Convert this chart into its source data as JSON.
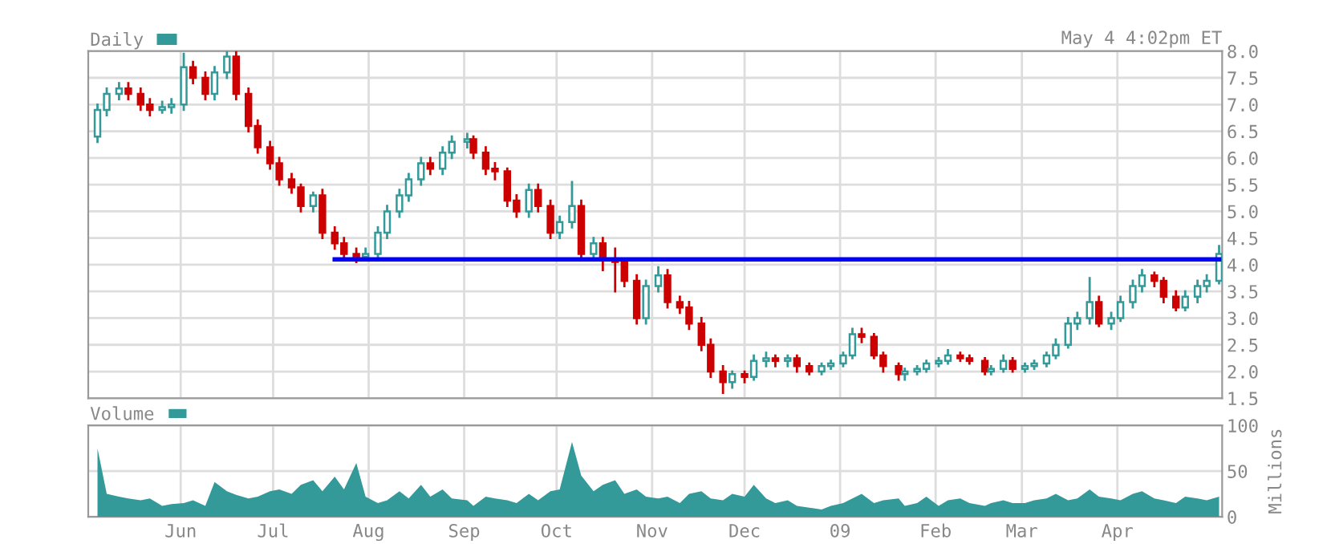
{
  "chart_data": [
    {
      "type": "candlestick",
      "legend": "top left",
      "grid": true,
      "tick_labels": "y",
      "annotations": [
        "May 4 4:02pm ET"
      ],
      "xlim": [
        "2008-05-02",
        "2009-05-05"
      ],
      "xticks": [
        "2008-06-01",
        "2008-07-01",
        "2008-08-01",
        "2008-09-01",
        "2008-10-01",
        "2008-11-01",
        "2008-12-01",
        "2009-01-01",
        "2009-02-01",
        "2009-03-01",
        "2009-04-01"
      ],
      "ylim": [
        1.5,
        8.0
      ],
      "yticks": [
        1.5,
        {
          "value": 2,
          "label": "2.0"
        },
        2.5,
        {
          "value": 3,
          "label": "3.0"
        },
        3.5,
        {
          "value": 4,
          "label": "4.0"
        },
        4.5,
        {
          "value": 5,
          "label": "5.0"
        },
        5.5,
        {
          "value": 6,
          "label": "6.0"
        },
        6.5,
        {
          "value": 7,
          "label": "7.0"
        },
        7.5,
        {
          "value": 8,
          "label": "8.0"
        }
      ],
      "series": [
        {
          "type": "candlestick",
          "name": "Daily",
          "color": "#339999",
          "colors": [
            "#339999",
            "#339999",
            "#339999",
            "#cc0000",
            "#cc0000",
            "#cc0000",
            "#339999",
            "#339999",
            "#339999",
            "#cc0000",
            "#cc0000",
            "#339999",
            "#339999",
            "#cc0000",
            "#cc0000",
            "#cc0000",
            "#cc0000",
            "#cc0000",
            "#cc0000",
            "#cc0000",
            "#339999",
            "#cc0000",
            "#cc0000",
            "#cc0000",
            "#cc0000",
            "#339999",
            "#339999",
            "#339999",
            "#339999",
            "#339999",
            "#339999",
            "#cc0000",
            "#339999",
            "#339999",
            "#339999",
            "#cc0000",
            "#cc0000",
            "#cc0000",
            "#cc0000",
            "#cc0000",
            "#339999",
            "#cc0000",
            "#cc0000",
            "#339999",
            "#339999",
            "#cc0000",
            "#339999",
            "#cc0000",
            "#cc0000",
            "#cc0000",
            "#cc0000",
            "#339999",
            "#339999",
            "#cc0000",
            "#cc0000",
            "#cc0000",
            "#cc0000",
            "#cc0000",
            "#cc0000",
            "#339999",
            "#cc0000",
            "#339999",
            "#339999",
            "#cc0000",
            "#339999",
            "#cc0000",
            "#cc0000",
            "#339999",
            "#339999",
            "#339999",
            "#339999",
            "#cc0000",
            "#cc0000",
            "#cc0000",
            "#cc0000",
            "#339999",
            "#339999",
            "#339999",
            "#339999",
            "#339999",
            "#cc0000",
            "#cc0000",
            "#cc0000",
            "#339999",
            "#339999",
            "#cc0000",
            "#339999",
            "#339999",
            "#339999",
            "#339999",
            "#339999",
            "#339999",
            "#339999",
            "#cc0000",
            "#339999",
            "#339999",
            "#339999",
            "#339999",
            "#cc0000",
            "#cc0000",
            "#cc0000",
            "#339999",
            "#339999",
            "#339999",
            "#339999"
          ],
          "x": [
            "2008-05-05",
            "2008-05-08",
            "2008-05-12",
            "2008-05-15",
            "2008-05-19",
            "2008-05-22",
            "2008-05-26",
            "2008-05-29",
            "2008-06-02",
            "2008-06-05",
            "2008-06-09",
            "2008-06-12",
            "2008-06-16",
            "2008-06-19",
            "2008-06-23",
            "2008-06-26",
            "2008-06-30",
            "2008-07-03",
            "2008-07-07",
            "2008-07-10",
            "2008-07-14",
            "2008-07-17",
            "2008-07-21",
            "2008-07-24",
            "2008-07-28",
            "2008-07-31",
            "2008-08-04",
            "2008-08-07",
            "2008-08-11",
            "2008-08-14",
            "2008-08-18",
            "2008-08-21",
            "2008-08-25",
            "2008-08-28",
            "2008-09-02",
            "2008-09-04",
            "2008-09-08",
            "2008-09-11",
            "2008-09-15",
            "2008-09-18",
            "2008-09-22",
            "2008-09-25",
            "2008-09-29",
            "2008-10-02",
            "2008-10-06",
            "2008-10-09",
            "2008-10-13",
            "2008-10-16",
            "2008-10-20",
            "2008-10-23",
            "2008-10-27",
            "2008-10-30",
            "2008-11-03",
            "2008-11-06",
            "2008-11-10",
            "2008-11-13",
            "2008-11-17",
            "2008-11-20",
            "2008-11-24",
            "2008-11-27",
            "2008-12-01",
            "2008-12-04",
            "2008-12-08",
            "2008-12-11",
            "2008-12-15",
            "2008-12-18",
            "2008-12-22",
            "2008-12-26",
            "2008-12-29",
            "2009-01-02",
            "2009-01-05",
            "2009-01-08",
            "2009-01-12",
            "2009-01-15",
            "2009-01-20",
            "2009-01-22",
            "2009-01-26",
            "2009-01-29",
            "2009-02-02",
            "2009-02-05",
            "2009-02-09",
            "2009-02-12",
            "2009-02-17",
            "2009-02-19",
            "2009-02-23",
            "2009-02-26",
            "2009-03-02",
            "2009-03-05",
            "2009-03-09",
            "2009-03-12",
            "2009-03-16",
            "2009-03-19",
            "2009-03-23",
            "2009-03-26",
            "2009-03-30",
            "2009-04-02",
            "2009-04-06",
            "2009-04-09",
            "2009-04-13",
            "2009-04-16",
            "2009-04-20",
            "2009-04-23",
            "2009-04-27",
            "2009-04-30",
            "2009-05-04"
          ],
          "ohlc": [
            [
              6.4,
              7.0,
              6.3,
              6.9
            ],
            [
              6.9,
              7.3,
              6.8,
              7.2
            ],
            [
              7.2,
              7.4,
              7.1,
              7.3
            ],
            [
              7.3,
              7.4,
              7.1,
              7.2
            ],
            [
              7.2,
              7.3,
              6.9,
              7.0
            ],
            [
              7.0,
              7.1,
              6.8,
              6.9
            ],
            [
              6.9,
              7.05,
              6.85,
              6.95
            ],
            [
              6.95,
              7.1,
              6.85,
              7.0
            ],
            [
              7.0,
              7.95,
              6.9,
              7.7
            ],
            [
              7.7,
              7.8,
              7.4,
              7.5
            ],
            [
              7.5,
              7.6,
              7.1,
              7.2
            ],
            [
              7.2,
              7.7,
              7.1,
              7.6
            ],
            [
              7.6,
              8.0,
              7.5,
              7.9
            ],
            [
              7.9,
              8.0,
              7.1,
              7.2
            ],
            [
              7.2,
              7.3,
              6.5,
              6.6
            ],
            [
              6.6,
              6.7,
              6.1,
              6.2
            ],
            [
              6.2,
              6.3,
              5.8,
              5.9
            ],
            [
              5.9,
              6.0,
              5.5,
              5.6
            ],
            [
              5.6,
              5.7,
              5.35,
              5.45
            ],
            [
              5.45,
              5.5,
              5.0,
              5.1
            ],
            [
              5.1,
              5.35,
              5.0,
              5.3
            ],
            [
              5.3,
              5.4,
              4.5,
              4.6
            ],
            [
              4.6,
              4.7,
              4.3,
              4.4
            ],
            [
              4.4,
              4.5,
              4.1,
              4.2
            ],
            [
              4.2,
              4.3,
              4.05,
              4.15
            ],
            [
              4.15,
              4.3,
              4.1,
              4.2
            ],
            [
              4.2,
              4.7,
              4.1,
              4.6
            ],
            [
              4.6,
              5.1,
              4.5,
              5.0
            ],
            [
              5.0,
              5.4,
              4.9,
              5.3
            ],
            [
              5.3,
              5.7,
              5.2,
              5.6
            ],
            [
              5.6,
              6.0,
              5.5,
              5.9
            ],
            [
              5.9,
              6.0,
              5.7,
              5.8
            ],
            [
              5.8,
              6.2,
              5.7,
              6.1
            ],
            [
              6.1,
              6.4,
              6.0,
              6.3
            ],
            [
              6.3,
              6.45,
              6.2,
              6.35
            ],
            [
              6.35,
              6.4,
              6.0,
              6.1
            ],
            [
              6.1,
              6.2,
              5.7,
              5.8
            ],
            [
              5.8,
              5.9,
              5.6,
              5.75
            ],
            [
              5.75,
              5.8,
              5.1,
              5.2
            ],
            [
              5.2,
              5.3,
              4.9,
              5.0
            ],
            [
              5.0,
              5.5,
              4.9,
              5.4
            ],
            [
              5.4,
              5.5,
              5.0,
              5.1
            ],
            [
              5.1,
              5.2,
              4.5,
              4.6
            ],
            [
              4.6,
              4.9,
              4.5,
              4.8
            ],
            [
              4.8,
              5.55,
              4.7,
              5.1
            ],
            [
              5.1,
              5.2,
              4.1,
              4.2
            ],
            [
              4.2,
              4.5,
              4.1,
              4.4
            ],
            [
              4.4,
              4.5,
              3.9,
              4.1
            ],
            [
              4.1,
              4.3,
              3.5,
              4.05
            ],
            [
              4.05,
              4.1,
              3.6,
              3.7
            ],
            [
              3.7,
              3.8,
              2.9,
              3.0
            ],
            [
              3.0,
              3.7,
              2.9,
              3.6
            ],
            [
              3.6,
              3.95,
              3.5,
              3.8
            ],
            [
              3.8,
              3.9,
              3.2,
              3.3
            ],
            [
              3.3,
              3.4,
              3.1,
              3.2
            ],
            [
              3.2,
              3.3,
              2.8,
              2.9
            ],
            [
              2.9,
              3.0,
              2.4,
              2.5
            ],
            [
              2.5,
              2.6,
              1.9,
              2.0
            ],
            [
              2.0,
              2.1,
              1.6,
              1.8
            ],
            [
              1.8,
              2.0,
              1.7,
              1.95
            ],
            [
              1.95,
              2.0,
              1.8,
              1.9
            ],
            [
              1.9,
              2.3,
              1.85,
              2.2
            ],
            [
              2.2,
              2.35,
              2.1,
              2.25
            ],
            [
              2.25,
              2.3,
              2.1,
              2.2
            ],
            [
              2.2,
              2.3,
              2.1,
              2.25
            ],
            [
              2.25,
              2.3,
              2.0,
              2.1
            ],
            [
              2.1,
              2.15,
              1.95,
              2.0
            ],
            [
              2.0,
              2.15,
              1.95,
              2.1
            ],
            [
              2.1,
              2.2,
              2.05,
              2.15
            ],
            [
              2.15,
              2.35,
              2.1,
              2.3
            ],
            [
              2.3,
              2.8,
              2.25,
              2.7
            ],
            [
              2.7,
              2.8,
              2.55,
              2.65
            ],
            [
              2.65,
              2.7,
              2.25,
              2.3
            ],
            [
              2.3,
              2.35,
              2.0,
              2.1
            ],
            [
              2.1,
              2.15,
              1.85,
              1.95
            ],
            [
              1.95,
              2.05,
              1.85,
              2.0
            ],
            [
              2.0,
              2.1,
              1.95,
              2.05
            ],
            [
              2.05,
              2.2,
              2.0,
              2.15
            ],
            [
              2.15,
              2.25,
              2.1,
              2.2
            ],
            [
              2.2,
              2.4,
              2.15,
              2.3
            ],
            [
              2.3,
              2.35,
              2.2,
              2.25
            ],
            [
              2.25,
              2.3,
              2.15,
              2.2
            ],
            [
              2.2,
              2.25,
              1.95,
              2.0
            ],
            [
              2.0,
              2.1,
              1.95,
              2.05
            ],
            [
              2.05,
              2.3,
              2.0,
              2.2
            ],
            [
              2.2,
              2.25,
              2.0,
              2.05
            ],
            [
              2.05,
              2.15,
              2.0,
              2.1
            ],
            [
              2.1,
              2.2,
              2.05,
              2.15
            ],
            [
              2.15,
              2.35,
              2.1,
              2.3
            ],
            [
              2.3,
              2.6,
              2.25,
              2.5
            ],
            [
              2.5,
              3.0,
              2.45,
              2.9
            ],
            [
              2.9,
              3.1,
              2.8,
              3.0
            ],
            [
              3.0,
              3.75,
              2.9,
              3.3
            ],
            [
              3.3,
              3.4,
              2.85,
              2.9
            ],
            [
              2.9,
              3.1,
              2.8,
              3.0
            ],
            [
              3.0,
              3.4,
              2.95,
              3.3
            ],
            [
              3.3,
              3.7,
              3.2,
              3.6
            ],
            [
              3.6,
              3.9,
              3.5,
              3.8
            ],
            [
              3.8,
              3.85,
              3.6,
              3.7
            ],
            [
              3.7,
              3.75,
              3.3,
              3.4
            ],
            [
              3.4,
              3.5,
              3.15,
              3.2
            ],
            [
              3.2,
              3.5,
              3.15,
              3.4
            ],
            [
              3.4,
              3.7,
              3.3,
              3.6
            ],
            [
              3.6,
              3.8,
              3.5,
              3.7
            ],
            [
              3.7,
              4.35,
              3.65,
              4.2
            ]
          ]
        },
        {
          "type": "line",
          "color": "#0000ff",
          "x": [
            "2008-07-21",
            "2009-05-04"
          ],
          "values": [
            4.1,
            4.1
          ]
        }
      ]
    },
    {
      "type": "area",
      "legend": "top left",
      "grid": true,
      "ylabel": "Millions",
      "xlim": [
        "2008-05-02",
        "2009-05-05"
      ],
      "xticks": [
        {
          "value": "2008-06-01",
          "label": "Jun"
        },
        {
          "value": "2008-07-01",
          "label": "Jul"
        },
        {
          "value": "2008-08-01",
          "label": "Aug"
        },
        {
          "value": "2008-09-01",
          "label": "Sep"
        },
        {
          "value": "2008-10-01",
          "label": "Oct"
        },
        {
          "value": "2008-11-01",
          "label": "Nov"
        },
        {
          "value": "2008-12-01",
          "label": "Dec"
        },
        {
          "value": "2009-01-01",
          "label": "09"
        },
        {
          "value": "2009-02-01",
          "label": "Feb"
        },
        {
          "value": "2009-03-01",
          "label": "Mar"
        },
        {
          "value": "2009-04-01",
          "label": "Apr"
        }
      ],
      "ylim": [
        0,
        100
      ],
      "yticks": [
        0,
        50,
        100
      ],
      "x": [
        "2008-05-05",
        "2008-05-08",
        "2008-05-12",
        "2008-05-15",
        "2008-05-19",
        "2008-05-22",
        "2008-05-26",
        "2008-05-29",
        "2008-06-02",
        "2008-06-05",
        "2008-06-09",
        "2008-06-12",
        "2008-06-16",
        "2008-06-19",
        "2008-06-23",
        "2008-06-26",
        "2008-06-30",
        "2008-07-03",
        "2008-07-07",
        "2008-07-10",
        "2008-07-14",
        "2008-07-17",
        "2008-07-21",
        "2008-07-24",
        "2008-07-28",
        "2008-07-31",
        "2008-08-04",
        "2008-08-07",
        "2008-08-11",
        "2008-08-14",
        "2008-08-18",
        "2008-08-21",
        "2008-08-25",
        "2008-08-28",
        "2008-09-02",
        "2008-09-04",
        "2008-09-08",
        "2008-09-11",
        "2008-09-15",
        "2008-09-18",
        "2008-09-22",
        "2008-09-25",
        "2008-09-29",
        "2008-10-02",
        "2008-10-06",
        "2008-10-09",
        "2008-10-13",
        "2008-10-16",
        "2008-10-20",
        "2008-10-23",
        "2008-10-27",
        "2008-10-30",
        "2008-11-03",
        "2008-11-06",
        "2008-11-10",
        "2008-11-13",
        "2008-11-17",
        "2008-11-20",
        "2008-11-24",
        "2008-11-27",
        "2008-12-01",
        "2008-12-04",
        "2008-12-08",
        "2008-12-11",
        "2008-12-15",
        "2008-12-18",
        "2008-12-22",
        "2008-12-26",
        "2008-12-29",
        "2009-01-02",
        "2009-01-05",
        "2009-01-08",
        "2009-01-12",
        "2009-01-15",
        "2009-01-20",
        "2009-01-22",
        "2009-01-26",
        "2009-01-29",
        "2009-02-02",
        "2009-02-05",
        "2009-02-09",
        "2009-02-12",
        "2009-02-17",
        "2009-02-19",
        "2009-02-23",
        "2009-02-26",
        "2009-03-02",
        "2009-03-05",
        "2009-03-09",
        "2009-03-12",
        "2009-03-16",
        "2009-03-19",
        "2009-03-23",
        "2009-03-26",
        "2009-03-30",
        "2009-04-02",
        "2009-04-06",
        "2009-04-09",
        "2009-04-13",
        "2009-04-16",
        "2009-04-20",
        "2009-04-23",
        "2009-04-27",
        "2009-04-30",
        "2009-05-04"
      ],
      "series": [
        {
          "name": "Volume",
          "color": "#339999",
          "values": [
            75,
            25,
            22,
            20,
            18,
            20,
            12,
            14,
            15,
            18,
            12,
            38,
            28,
            24,
            20,
            22,
            28,
            30,
            25,
            35,
            40,
            28,
            44,
            30,
            59,
            22,
            15,
            18,
            28,
            20,
            35,
            22,
            30,
            20,
            18,
            12,
            22,
            20,
            18,
            15,
            25,
            18,
            28,
            30,
            82,
            45,
            28,
            35,
            40,
            25,
            30,
            22,
            20,
            22,
            15,
            25,
            28,
            20,
            18,
            25,
            22,
            35,
            20,
            15,
            18,
            12,
            10,
            8,
            12,
            15,
            20,
            25,
            15,
            18,
            20,
            12,
            15,
            22,
            12,
            18,
            20,
            15,
            12,
            15,
            18,
            15,
            15,
            18,
            20,
            25,
            18,
            20,
            30,
            22,
            20,
            18,
            25,
            28,
            20,
            18,
            15,
            22,
            20,
            18,
            22
          ]
        }
      ]
    }
  ]
}
